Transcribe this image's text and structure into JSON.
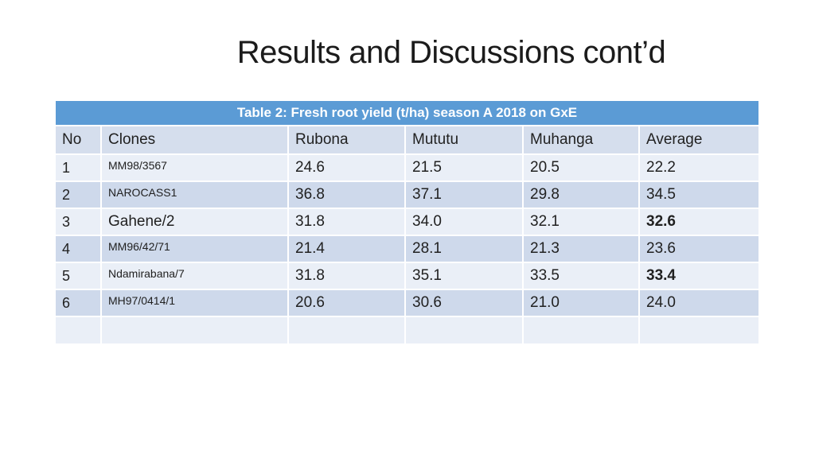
{
  "slide": {
    "title": "Results and Discussions cont’d"
  },
  "table": {
    "caption": "Table 2: Fresh root yield (t/ha) season A 2018 on GxE",
    "columns": [
      {
        "key": "no",
        "label": "No"
      },
      {
        "key": "clone",
        "label": "Clones"
      },
      {
        "key": "rubona",
        "label": "Rubona"
      },
      {
        "key": "mututu",
        "label": "Mututu"
      },
      {
        "key": "muhanga",
        "label": "Muhanga"
      },
      {
        "key": "average",
        "label": "Average"
      }
    ],
    "rows": [
      {
        "no": "1",
        "clone": "MM98/3567",
        "rubona": "24.6",
        "mututu": "21.5",
        "muhanga": "20.5",
        "average": "22.2",
        "average_bold": false,
        "clone_large": false
      },
      {
        "no": "2",
        "clone": "NAROCASS1",
        "rubona": "36.8",
        "mututu": "37.1",
        "muhanga": "29.8",
        "average": "34.5",
        "average_bold": false,
        "clone_large": false
      },
      {
        "no": "3",
        "clone": "Gahene/2",
        "rubona": "31.8",
        "mututu": "34.0",
        "muhanga": "32.1",
        "average": "32.6",
        "average_bold": true,
        "clone_large": true
      },
      {
        "no": "4",
        "clone": "MM96/42/71",
        "rubona": "21.4",
        "mututu": "28.1",
        "muhanga": "21.3",
        "average": "23.6",
        "average_bold": false,
        "clone_large": false
      },
      {
        "no": "5",
        "clone": "Ndamirabana/7",
        "rubona": "31.8",
        "mututu": "35.1",
        "muhanga": "33.5",
        "average": "33.4",
        "average_bold": true,
        "clone_large": false
      },
      {
        "no": "6",
        "clone": "MH97/0414/1",
        "rubona": "20.6",
        "mututu": "30.6",
        "muhanga": "21.0",
        "average": "24.0",
        "average_bold": false,
        "clone_large": false
      },
      {
        "no": "",
        "clone": "",
        "rubona": "",
        "mututu": "",
        "muhanga": "",
        "average": "",
        "average_bold": false,
        "clone_large": false
      }
    ],
    "colors": {
      "caption_bar_bg": "#5B9BD5",
      "caption_text": "#FFFFFF",
      "column_header_bg": "#D5DEED",
      "row_light_bg": "#EAEFF7",
      "row_dark_bg": "#CED9EB",
      "body_text": "#212121"
    }
  }
}
